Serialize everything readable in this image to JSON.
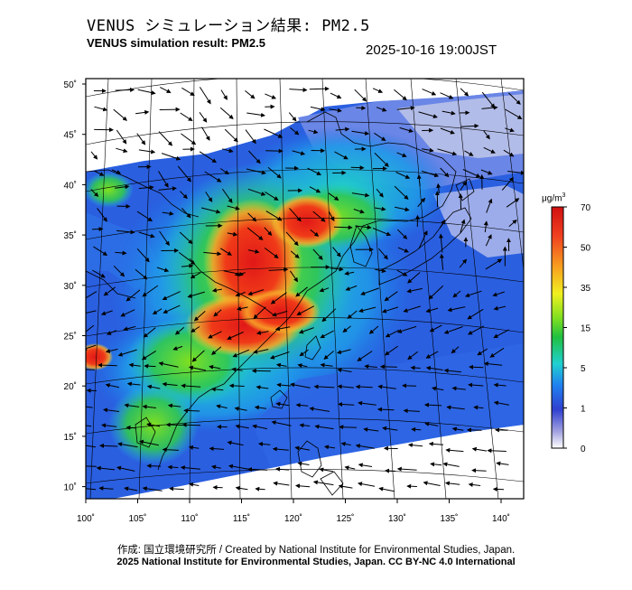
{
  "header": {
    "title_jp": "VENUS シミュレーション結果: PM2.5",
    "title_en": "VENUS simulation result: PM2.5",
    "timestamp": "2025-10-16 19:00JST"
  },
  "map": {
    "lat_labels": [
      "50˚",
      "45˚",
      "40˚",
      "35˚",
      "30˚",
      "25˚",
      "20˚",
      "15˚",
      "10˚"
    ],
    "lon_labels": [
      "100˚",
      "105˚",
      "110˚",
      "115˚",
      "120˚",
      "125˚",
      "130˚",
      "135˚",
      "140˚"
    ],
    "lat_values": [
      50,
      45,
      40,
      35,
      30,
      25,
      20,
      15,
      10
    ],
    "lon_values": [
      100,
      105,
      110,
      115,
      120,
      125,
      130,
      135,
      140
    ]
  },
  "colorbar": {
    "unit": "μg/m",
    "unit_exponent": "3",
    "ticks": [
      "70",
      "50",
      "35",
      "15",
      "5",
      "1",
      "0"
    ],
    "colors": [
      "#d01010",
      "#f04020",
      "#f8a020",
      "#f0f020",
      "#80e020",
      "#20c040",
      "#20d0d0",
      "#2080f0",
      "#3040d0",
      "#a0a0e0",
      "#ffffff"
    ]
  },
  "footer": {
    "credit": "作成: 国立環境研究所 / Created by National Institute for Environmental Studies, Japan.",
    "license": "2025 National Institute for Environmental Studies, Japan. CC BY-NC 4.0 International"
  }
}
